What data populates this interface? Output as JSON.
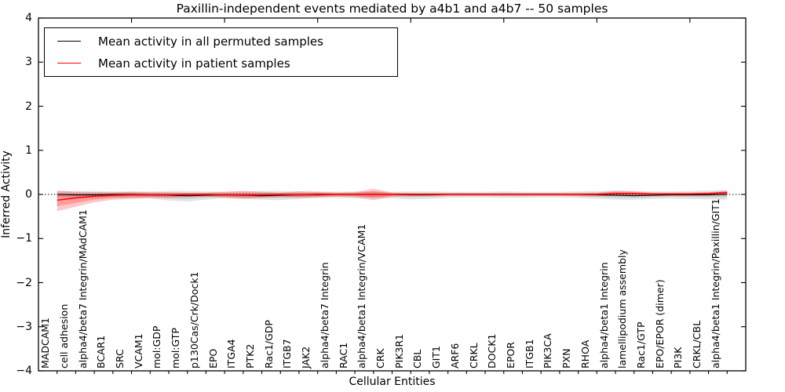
{
  "title": "Paxillin-independent events mediated by a4b1 and a4b7 -- 50 samples",
  "axes": {
    "ylabel": "Inferred Activity",
    "xlabel": "Cellular Entities"
  },
  "legend": {
    "items": [
      {
        "label": "Mean activity in all permuted samples",
        "color": "#000000"
      },
      {
        "label": "Mean activity in patient samples",
        "color": "#ff0000"
      }
    ]
  },
  "chart_data": {
    "type": "line",
    "title": "Paxillin-independent events mediated by a4b1 and a4b7 -- 50 samples",
    "xlabel": "Cellular Entities",
    "ylabel": "Inferred Activity",
    "ylim": [
      -4,
      4
    ],
    "xlim": [
      0,
      38
    ],
    "grid": false,
    "legend_position": "upper left",
    "zero_line": {
      "style": "dotted",
      "color": "#000000",
      "y": 0
    },
    "top_ticks_at": [
      5,
      10,
      15,
      20,
      25,
      30,
      35
    ],
    "yticks": [
      {
        "v": 4,
        "label": "4"
      },
      {
        "v": 3,
        "label": "3"
      },
      {
        "v": 2,
        "label": "2"
      },
      {
        "v": 1,
        "label": "1"
      },
      {
        "v": 0,
        "label": "0"
      },
      {
        "v": -1,
        "label": "−1"
      },
      {
        "v": -2,
        "label": "−2"
      },
      {
        "v": -3,
        "label": "−3"
      },
      {
        "v": -4,
        "label": "−4"
      }
    ],
    "categories": [
      "MADCAM1",
      "cell adhesion",
      "alpha4/beta7 Integrin/MAdCAM1",
      "BCAR1",
      "SRC",
      "VCAM1",
      "mol:GDP",
      "mol:GTP",
      "p130Cas/Crk/Dock1",
      "EPO",
      "ITGA4",
      "PTK2",
      "Rac1/GDP",
      "ITGB7",
      "JAK2",
      "alpha4/beta7 Integrin",
      "RAC1",
      "alpha4/beta1 Integrin/VCAM1",
      "CRK",
      "PIK3R1",
      "CBL",
      "GIT1",
      "ARF6",
      "CRKL",
      "DOCK1",
      "EPOR",
      "ITGB1",
      "PIK3CA",
      "PXN",
      "RHOA",
      "alpha4/beta1 Integrin",
      "lamellipodium assembly",
      "Rac1/GTP",
      "EPO/EPOR (dimer)",
      "PI3K",
      "CRKL/CBL",
      "alpha4/beta1 Integrin/Paxillin/GIT1"
    ],
    "series": [
      {
        "name": "Mean activity in all permuted samples",
        "color": "#000000",
        "values": [
          0,
          -0.01,
          -0.01,
          0,
          0,
          -0.01,
          -0.02,
          -0.03,
          -0.02,
          -0.01,
          -0.02,
          -0.03,
          -0.02,
          -0.01,
          -0.01,
          0,
          0,
          0,
          0,
          -0.01,
          -0.01,
          0,
          0,
          0,
          0,
          0,
          0,
          0,
          0,
          -0.01,
          -0.02,
          -0.03,
          -0.02,
          -0.01,
          -0.01,
          -0.01,
          0
        ]
      },
      {
        "name": "Mean activity in patient samples",
        "color": "#ff0000",
        "values": [
          -0.13,
          -0.08,
          -0.04,
          -0.02,
          -0.01,
          -0.01,
          -0.01,
          0,
          0,
          -0.01,
          -0.02,
          -0.01,
          0,
          -0.01,
          0,
          0,
          0,
          0,
          0,
          0,
          0,
          0,
          0,
          0,
          0,
          0,
          0,
          0,
          0,
          0,
          0.02,
          0.02,
          0.01,
          0.01,
          0.01,
          0.02,
          0.04
        ]
      }
    ],
    "bands": [
      {
        "name": "permuted-samples-range",
        "color": "#000000",
        "opacity": 0.1,
        "upper": [
          0.07,
          0.08,
          0.08,
          0.07,
          0.07,
          0.07,
          0.08,
          0.08,
          0.07,
          0.06,
          0.07,
          0.08,
          0.08,
          0.07,
          0.07,
          0.06,
          0.07,
          0.07,
          0.06,
          0.07,
          0.07,
          0.06,
          0.06,
          0.06,
          0.07,
          0.06,
          0.06,
          0.06,
          0.07,
          0.08,
          0.09,
          0.08,
          0.07,
          0.07,
          0.08,
          0.09,
          0.1
        ],
        "lower": [
          -0.07,
          -0.08,
          -0.09,
          -0.08,
          -0.08,
          -0.09,
          -0.14,
          -0.16,
          -0.12,
          -0.08,
          -0.1,
          -0.12,
          -0.13,
          -0.1,
          -0.08,
          -0.08,
          -0.09,
          -0.08,
          -0.09,
          -0.11,
          -0.1,
          -0.08,
          -0.07,
          -0.07,
          -0.08,
          -0.08,
          -0.07,
          -0.07,
          -0.08,
          -0.1,
          -0.12,
          -0.12,
          -0.1,
          -0.09,
          -0.1,
          -0.11,
          -0.12
        ]
      },
      {
        "name": "patient-samples-range",
        "color": "#ff0000",
        "opacity": 0.22,
        "upper": [
          0.09,
          0.06,
          0.05,
          0.05,
          0.06,
          0.05,
          0.05,
          0.04,
          0.04,
          0.06,
          0.08,
          0.06,
          0.04,
          0.07,
          0.06,
          0.04,
          0.05,
          0.13,
          0.04,
          0.03,
          0.03,
          0.03,
          0.03,
          0.03,
          0.03,
          0.03,
          0.03,
          0.03,
          0.03,
          0.04,
          0.08,
          0.07,
          0.04,
          0.04,
          0.04,
          0.05,
          0.09
        ],
        "lower": [
          -0.38,
          -0.28,
          -0.18,
          -0.12,
          -0.1,
          -0.08,
          -0.08,
          -0.06,
          -0.05,
          -0.08,
          -0.1,
          -0.08,
          -0.06,
          -0.08,
          -0.07,
          -0.05,
          -0.06,
          -0.13,
          -0.05,
          -0.04,
          -0.04,
          -0.03,
          -0.03,
          -0.03,
          -0.03,
          -0.03,
          -0.03,
          -0.03,
          -0.04,
          -0.04,
          -0.03,
          -0.03,
          -0.03,
          -0.03,
          -0.03,
          -0.02,
          -0.02
        ]
      }
    ]
  }
}
